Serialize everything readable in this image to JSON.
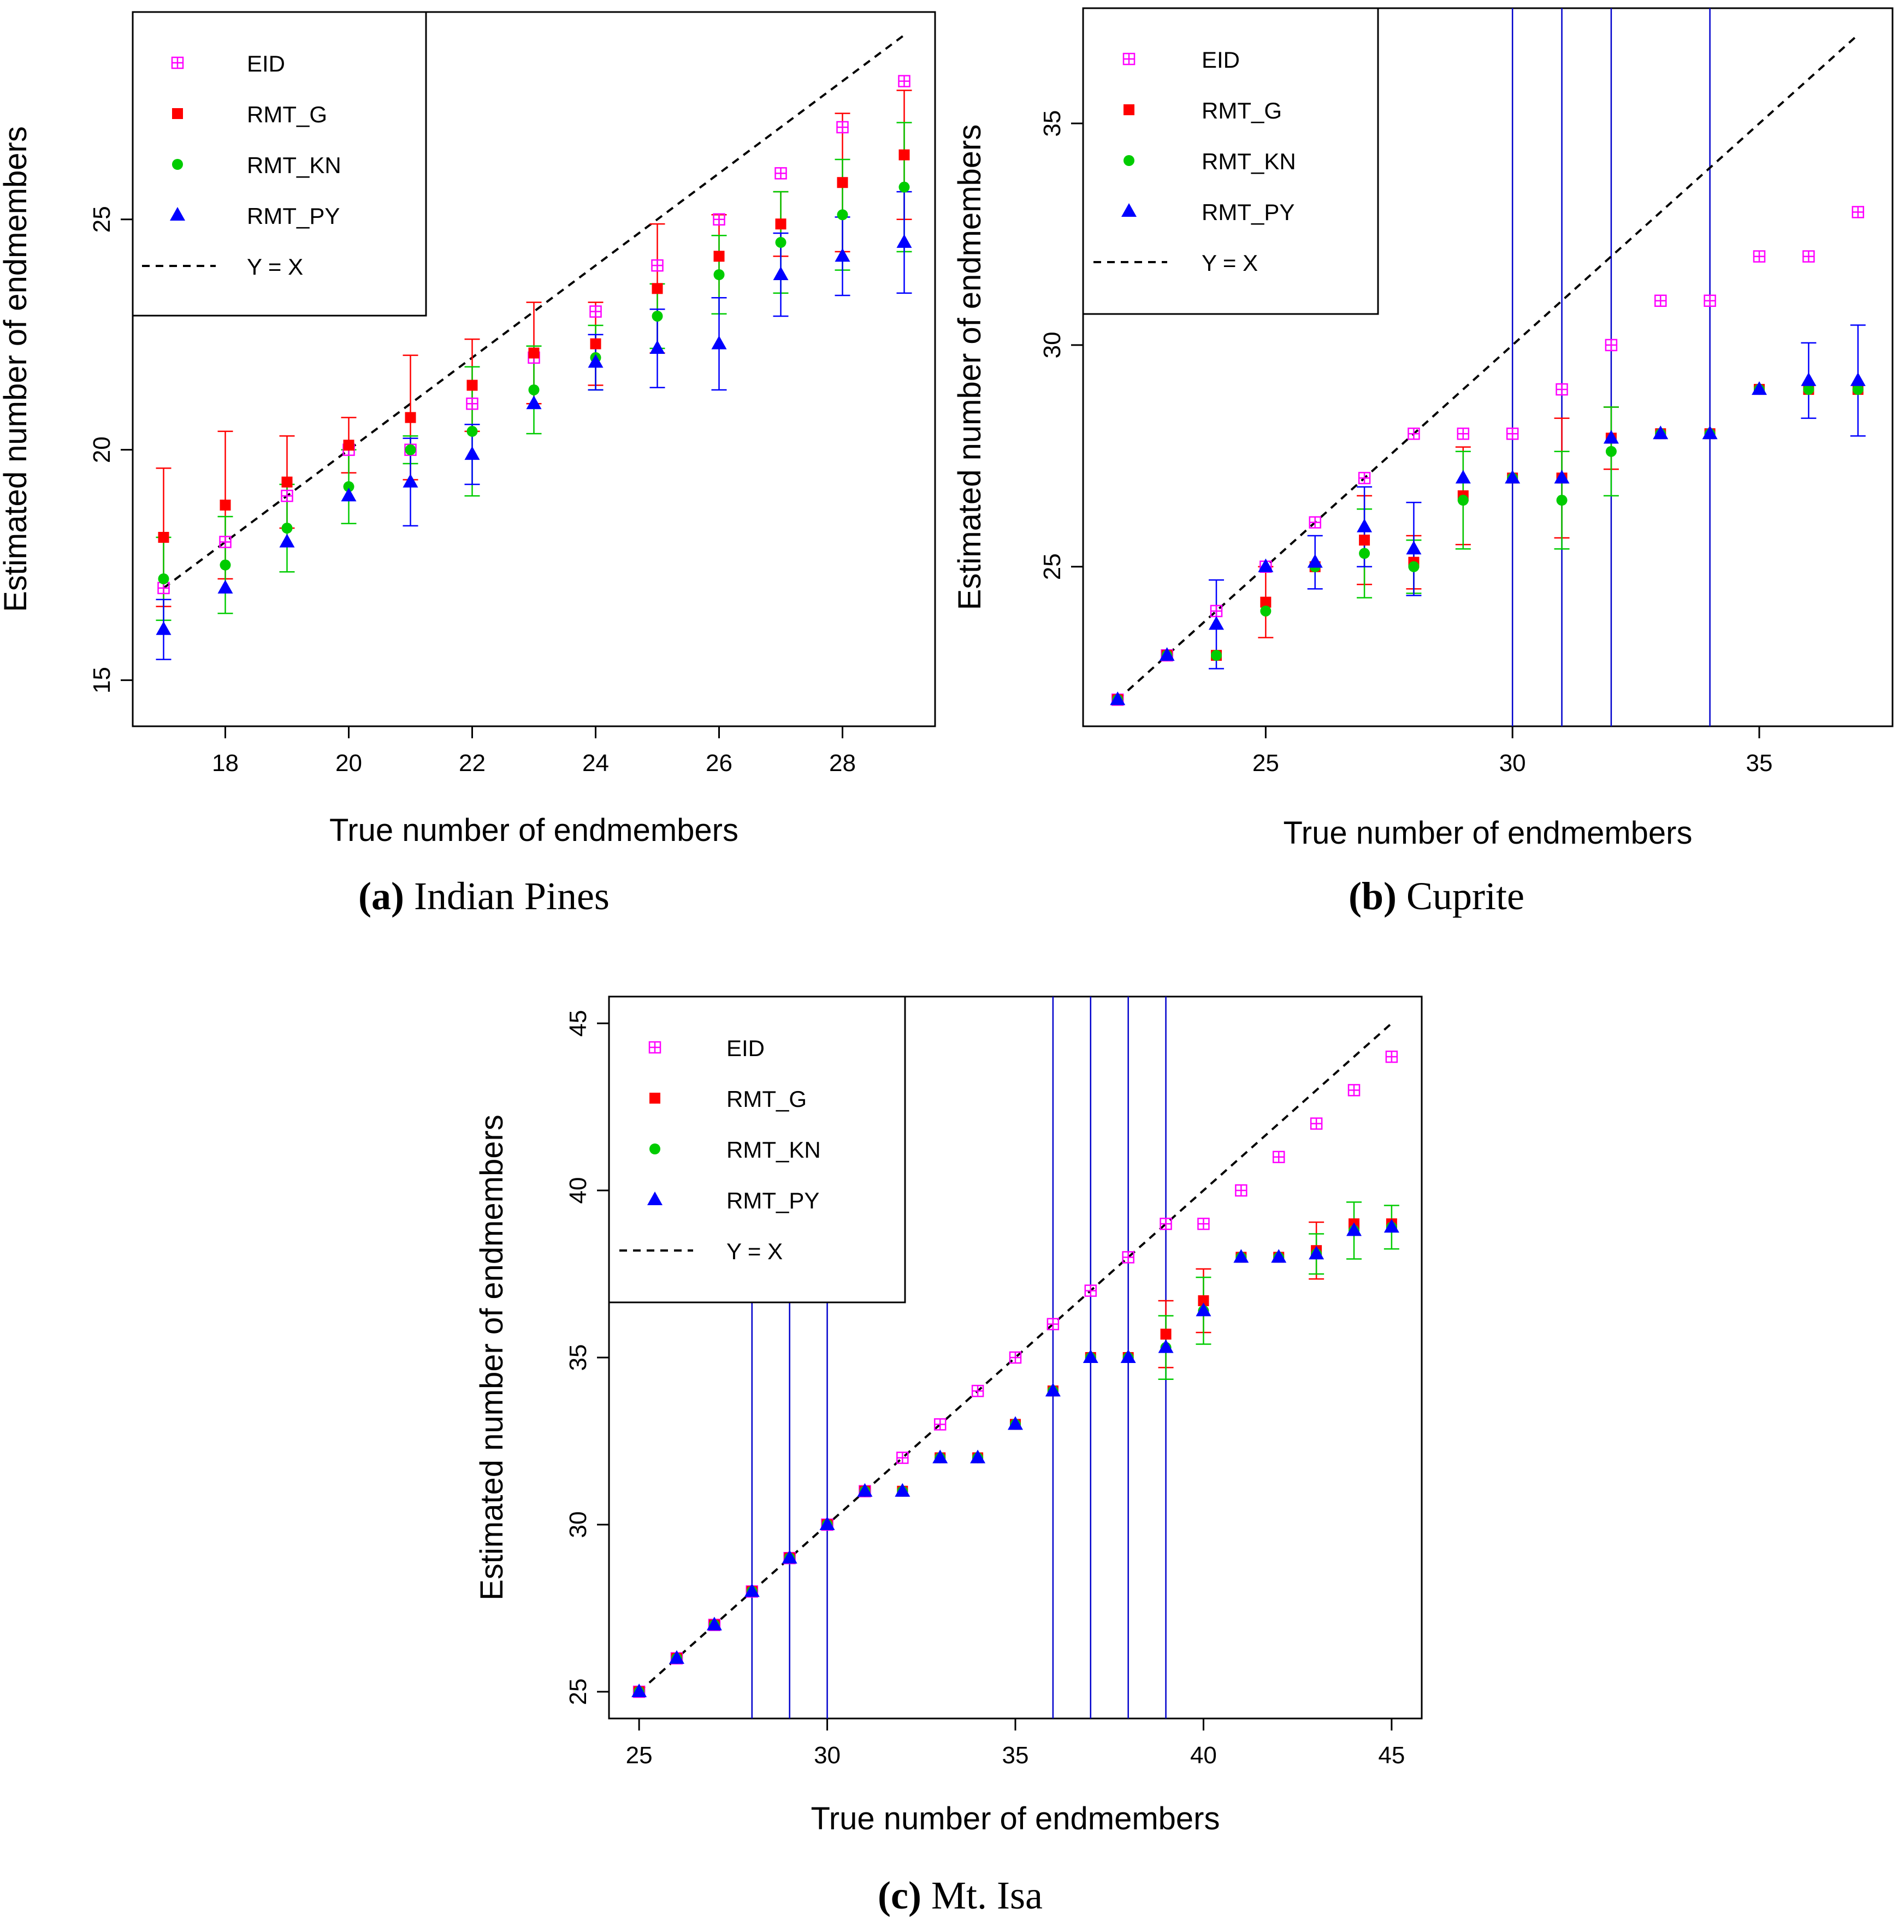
{
  "colors": {
    "eid": "#ff00ff",
    "rmt_g": "#ff0000",
    "rmt_kn": "#00cc00",
    "rmt_py": "#0000ff",
    "ref": "#000000",
    "vline": "#0000cc"
  },
  "legend_labels": [
    "EID",
    "RMT_G",
    "RMT_KN",
    "RMT_PY",
    "Y = X"
  ],
  "chart_data": [
    {
      "id": "a",
      "type": "scatter",
      "caption_letter": "(a)",
      "caption_text": "Indian Pines",
      "xlabel": "True number of endmembers",
      "ylabel": "Estimated number of endmembers",
      "xlim": [
        16.5,
        29.5
      ],
      "ylim": [
        14,
        29.5
      ],
      "xticks": [
        18,
        20,
        22,
        24,
        26,
        28
      ],
      "yticks": [
        15,
        20,
        25
      ],
      "legend_position": "top-left",
      "ref_line": [
        17,
        29
      ],
      "vlines": [],
      "x": [
        17,
        18,
        19,
        20,
        21,
        22,
        23,
        24,
        25,
        26,
        27,
        28,
        29
      ],
      "series": [
        {
          "name": "EID",
          "values": [
            17,
            18,
            19,
            20,
            20,
            21,
            22,
            23,
            24,
            25,
            26,
            27,
            28
          ],
          "err": [
            0,
            0,
            0,
            0,
            0,
            0,
            0,
            0,
            0,
            0,
            0,
            0,
            0
          ]
        },
        {
          "name": "RMT_G",
          "values": [
            18.1,
            18.8,
            19.3,
            20.1,
            20.7,
            21.4,
            22.1,
            22.3,
            23.5,
            24.2,
            24.9,
            25.8,
            26.4
          ],
          "err": [
            1.5,
            1.6,
            1,
            0.6,
            1.35,
            1,
            1.1,
            0.9,
            1.4,
            0.9,
            0.7,
            1.5,
            1.4
          ]
        },
        {
          "name": "RMT_KN",
          "values": [
            17.2,
            17.5,
            18.3,
            19.2,
            20,
            20.4,
            21.3,
            22,
            22.9,
            23.8,
            24.5,
            25.1,
            25.7
          ],
          "err": [
            0.9,
            1.05,
            0.95,
            0.8,
            0.3,
            1.4,
            0.95,
            0.7,
            0.7,
            0.85,
            1.1,
            1.2,
            1.4
          ]
        },
        {
          "name": "RMT_PY",
          "values": [
            16.1,
            17,
            18,
            19,
            19.3,
            19.9,
            21,
            21.9,
            22.2,
            22.3,
            23.8,
            24.2,
            24.5
          ],
          "err": [
            0.65,
            0,
            0,
            0,
            0.95,
            0.65,
            0,
            0.6,
            0.85,
            1,
            0.9,
            0.85,
            1.1
          ]
        }
      ]
    },
    {
      "id": "b",
      "type": "scatter",
      "caption_letter": "(b)",
      "caption_text": "Cuprite",
      "xlabel": "True number of endmembers",
      "ylabel": "Estimated number of endmembers",
      "xlim": [
        21.3,
        37.7
      ],
      "ylim": [
        21.4,
        37.6
      ],
      "xticks": [
        25,
        30,
        35
      ],
      "yticks": [
        25,
        30,
        35
      ],
      "legend_position": "top-left",
      "ref_line": [
        22,
        37
      ],
      "vlines": [
        30,
        31,
        32,
        34
      ],
      "x": [
        22,
        23,
        24,
        25,
        26,
        27,
        28,
        29,
        30,
        31,
        32,
        33,
        34,
        35,
        36,
        37
      ],
      "series": [
        {
          "name": "EID",
          "values": [
            22,
            23,
            24,
            25,
            26,
            27,
            28,
            28,
            28,
            29,
            30,
            31,
            31,
            32,
            32,
            33
          ],
          "err": [
            0,
            0,
            0,
            0,
            0,
            0,
            0,
            0,
            0,
            0,
            0,
            0,
            0,
            0,
            0,
            0
          ]
        },
        {
          "name": "RMT_G",
          "values": [
            22,
            23,
            23,
            24.2,
            25,
            25.6,
            25.1,
            26.6,
            27,
            27,
            27.9,
            28,
            28,
            29,
            29,
            29
          ],
          "err": [
            0,
            0,
            0,
            0.8,
            0,
            1,
            0.6,
            1.1,
            0,
            1.35,
            0.7,
            0,
            0,
            0,
            0,
            0
          ]
        },
        {
          "name": "RMT_KN",
          "values": [
            22,
            23,
            23,
            24,
            25,
            25.3,
            25,
            26.5,
            27,
            26.5,
            27.6,
            28,
            28,
            29,
            29,
            29
          ],
          "err": [
            0,
            0,
            0,
            0,
            0,
            1,
            0.6,
            1.1,
            0,
            1.1,
            1,
            0,
            0,
            0,
            0,
            0
          ]
        },
        {
          "name": "RMT_PY",
          "values": [
            22,
            23,
            23.7,
            25,
            25.1,
            25.9,
            25.4,
            27,
            27,
            27,
            27.9,
            28,
            28,
            29,
            29.2,
            29.2
          ],
          "err": [
            0,
            0,
            1,
            0,
            0.6,
            0.9,
            1.05,
            0,
            0,
            0,
            0,
            0,
            0,
            0,
            0.85,
            1.25
          ]
        }
      ]
    },
    {
      "id": "c",
      "type": "scatter",
      "caption_letter": "(c)",
      "caption_text": "Mt. Isa",
      "xlabel": "True number of endmembers",
      "ylabel": "Estimated number of endmembers",
      "xlim": [
        24.2,
        45.8
      ],
      "ylim": [
        24.2,
        45.8
      ],
      "xticks": [
        25,
        30,
        35,
        40,
        45
      ],
      "yticks": [
        25,
        30,
        35,
        40,
        45
      ],
      "legend_position": "top-left",
      "ref_line": [
        25,
        45
      ],
      "vlines": [
        28,
        29,
        30,
        36,
        37,
        38,
        39
      ],
      "x": [
        25,
        26,
        27,
        28,
        29,
        30,
        31,
        32,
        33,
        34,
        35,
        36,
        37,
        38,
        39,
        40,
        41,
        42,
        43,
        44,
        45
      ],
      "series": [
        {
          "name": "EID",
          "values": [
            25,
            26,
            27,
            28,
            29,
            30,
            31,
            32,
            33,
            34,
            35,
            36,
            37,
            38,
            39,
            39,
            40,
            41,
            42,
            43,
            44
          ],
          "err": [
            0,
            0,
            0,
            0,
            0,
            0,
            0,
            0,
            0,
            0,
            0,
            0,
            0,
            0,
            0,
            0,
            0,
            0,
            0,
            0,
            0
          ]
        },
        {
          "name": "RMT_G",
          "values": [
            25,
            26,
            27,
            28,
            29,
            30,
            31,
            31,
            32,
            32,
            33,
            34,
            35,
            35,
            35.7,
            36.7,
            38,
            38,
            38.2,
            39,
            39
          ],
          "err": [
            0,
            0,
            0,
            0,
            0,
            0,
            0,
            0,
            0,
            0,
            0,
            0,
            0,
            0,
            1,
            0.95,
            0,
            0,
            0.85,
            0,
            0
          ]
        },
        {
          "name": "RMT_KN",
          "values": [
            25,
            26,
            27,
            28,
            29,
            30,
            31,
            31,
            32,
            32,
            33,
            34,
            35,
            35,
            35.3,
            36.4,
            38,
            38,
            38.1,
            38.8,
            38.9
          ],
          "err": [
            0,
            0,
            0,
            0,
            0,
            0,
            0,
            0,
            0,
            0,
            0,
            0,
            0,
            0,
            0.95,
            1,
            0,
            0,
            0.6,
            0.85,
            0.65
          ]
        },
        {
          "name": "RMT_PY",
          "values": [
            25,
            26,
            27,
            28,
            29,
            30,
            31,
            31,
            32,
            32,
            33,
            34,
            35,
            35,
            35.3,
            36.4,
            38,
            38,
            38.1,
            38.8,
            38.9
          ],
          "err": [
            0,
            0,
            0,
            0,
            0,
            0,
            0,
            0,
            0,
            0,
            0,
            0,
            0,
            0,
            0,
            0,
            0,
            0,
            0,
            0,
            0
          ]
        }
      ]
    }
  ]
}
